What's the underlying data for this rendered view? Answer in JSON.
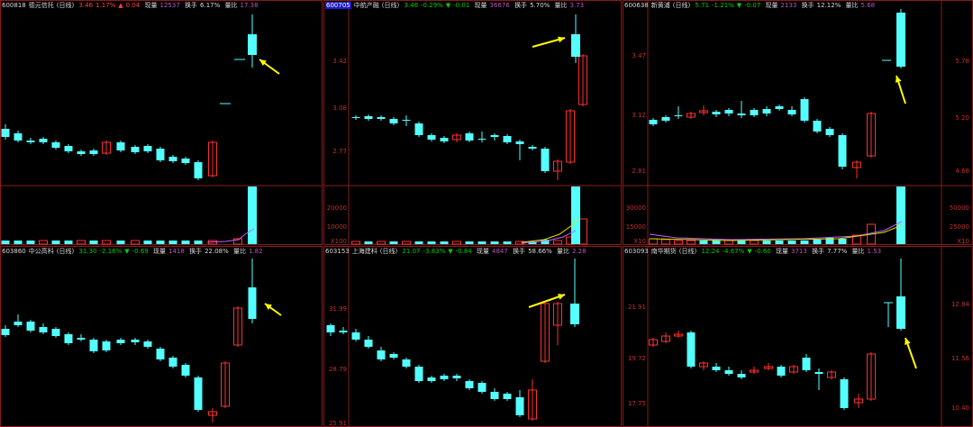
{
  "colors": {
    "background": "#000000",
    "grid": "#8a1a1a",
    "up": "#ff3030",
    "down": "#54ffff",
    "arrow": "#ffff00",
    "ma1": "#ffffff",
    "ma2": "#e0e000",
    "ma3": "#c060ff"
  },
  "icons": [
    "arrow-annotation-icon"
  ],
  "panels": [
    {
      "code": "600818",
      "name": "德元信托",
      "period": "(日线)",
      "price": "3.46",
      "pct": "1.17%",
      "chg_sign": "▲",
      "chg": "0.04",
      "chg_dir": "up",
      "vol_label": "现量",
      "vol": "12537",
      "turn_label": "换手",
      "turn": "6.17%",
      "ratio_label": "量比",
      "ratio": "17.38",
      "price_ticks": [],
      "vol_ticks": [],
      "vol_unit": "",
      "vol_ticks_right": false
    },
    {
      "code": "600705",
      "name": "中航产融",
      "period": "(日线)",
      "price": "3.46",
      "pct": "-0.29%",
      "chg_sign": "▼",
      "chg": "-0.01",
      "chg_dir": "dn",
      "vol_label": "现量",
      "vol": "36676",
      "turn_label": "换手",
      "turn": "5.70%",
      "ratio_label": "量比",
      "ratio": "3.73",
      "price_ticks": [
        "3.42",
        "3.08",
        "2.77"
      ],
      "vol_ticks": [
        "20000",
        "10000"
      ],
      "vol_unit": "X100",
      "vol_ticks_right": false,
      "selected": true
    },
    {
      "code": "600638",
      "name": "新黄浦",
      "period": "(日线)",
      "price": "5.71",
      "pct": "-1.21%",
      "chg_sign": "▼",
      "chg": "-0.07",
      "chg_dir": "dn",
      "vol_label": "现量",
      "vol": "2133",
      "turn_label": "换手",
      "turn": "12.12%",
      "ratio_label": "量比",
      "ratio": "5.68",
      "price_ticks": [
        "3.47",
        "3.12",
        "2.81"
      ],
      "price_ticks_right": [
        "5.78",
        "5.20",
        "4.68"
      ],
      "vol_ticks": [
        "30000",
        "15000"
      ],
      "vol_ticks_right_vals": [
        "50000",
        "25000"
      ],
      "vol_unit": "X10",
      "vol_unit_right": "X10"
    },
    {
      "code": "603860",
      "name": "中公高科",
      "period": "(日线)",
      "price": "31.30",
      "pct": "-2.16%",
      "chg_sign": "▼",
      "chg": "-0.69",
      "chg_dir": "dn",
      "vol_label": "现量",
      "vol": "1418",
      "turn_label": "换手",
      "turn": "22.08%",
      "ratio_label": "量比",
      "ratio": "1.82",
      "price_ticks": []
    },
    {
      "code": "603153",
      "name": "上海建科",
      "period": "(日线)",
      "price": "21.07",
      "pct": "-3.83%",
      "chg_sign": "▼",
      "chg": "-0.84",
      "chg_dir": "dn",
      "vol_label": "现量",
      "vol": "4847",
      "turn_label": "换手",
      "turn": "58.66%",
      "ratio_label": "量比",
      "ratio": "2.28",
      "price_ticks": [
        "31.99",
        "28.79",
        "25.91"
      ]
    },
    {
      "code": "603093",
      "name": "南华期货",
      "period": "(日线)",
      "price": "12.24",
      "pct": "-4.67%",
      "chg_sign": "▼",
      "chg": "-0.60",
      "chg_dir": "dn",
      "vol_label": "现量",
      "vol": "3713",
      "turn_label": "换手",
      "turn": "7.77%",
      "ratio_label": "量比",
      "ratio": "1.53",
      "price_ticks": [
        "21.91",
        "19.72",
        "17.75"
      ],
      "price_ticks_right": [
        "12.84",
        "11.56",
        "10.40"
      ]
    }
  ]
}
